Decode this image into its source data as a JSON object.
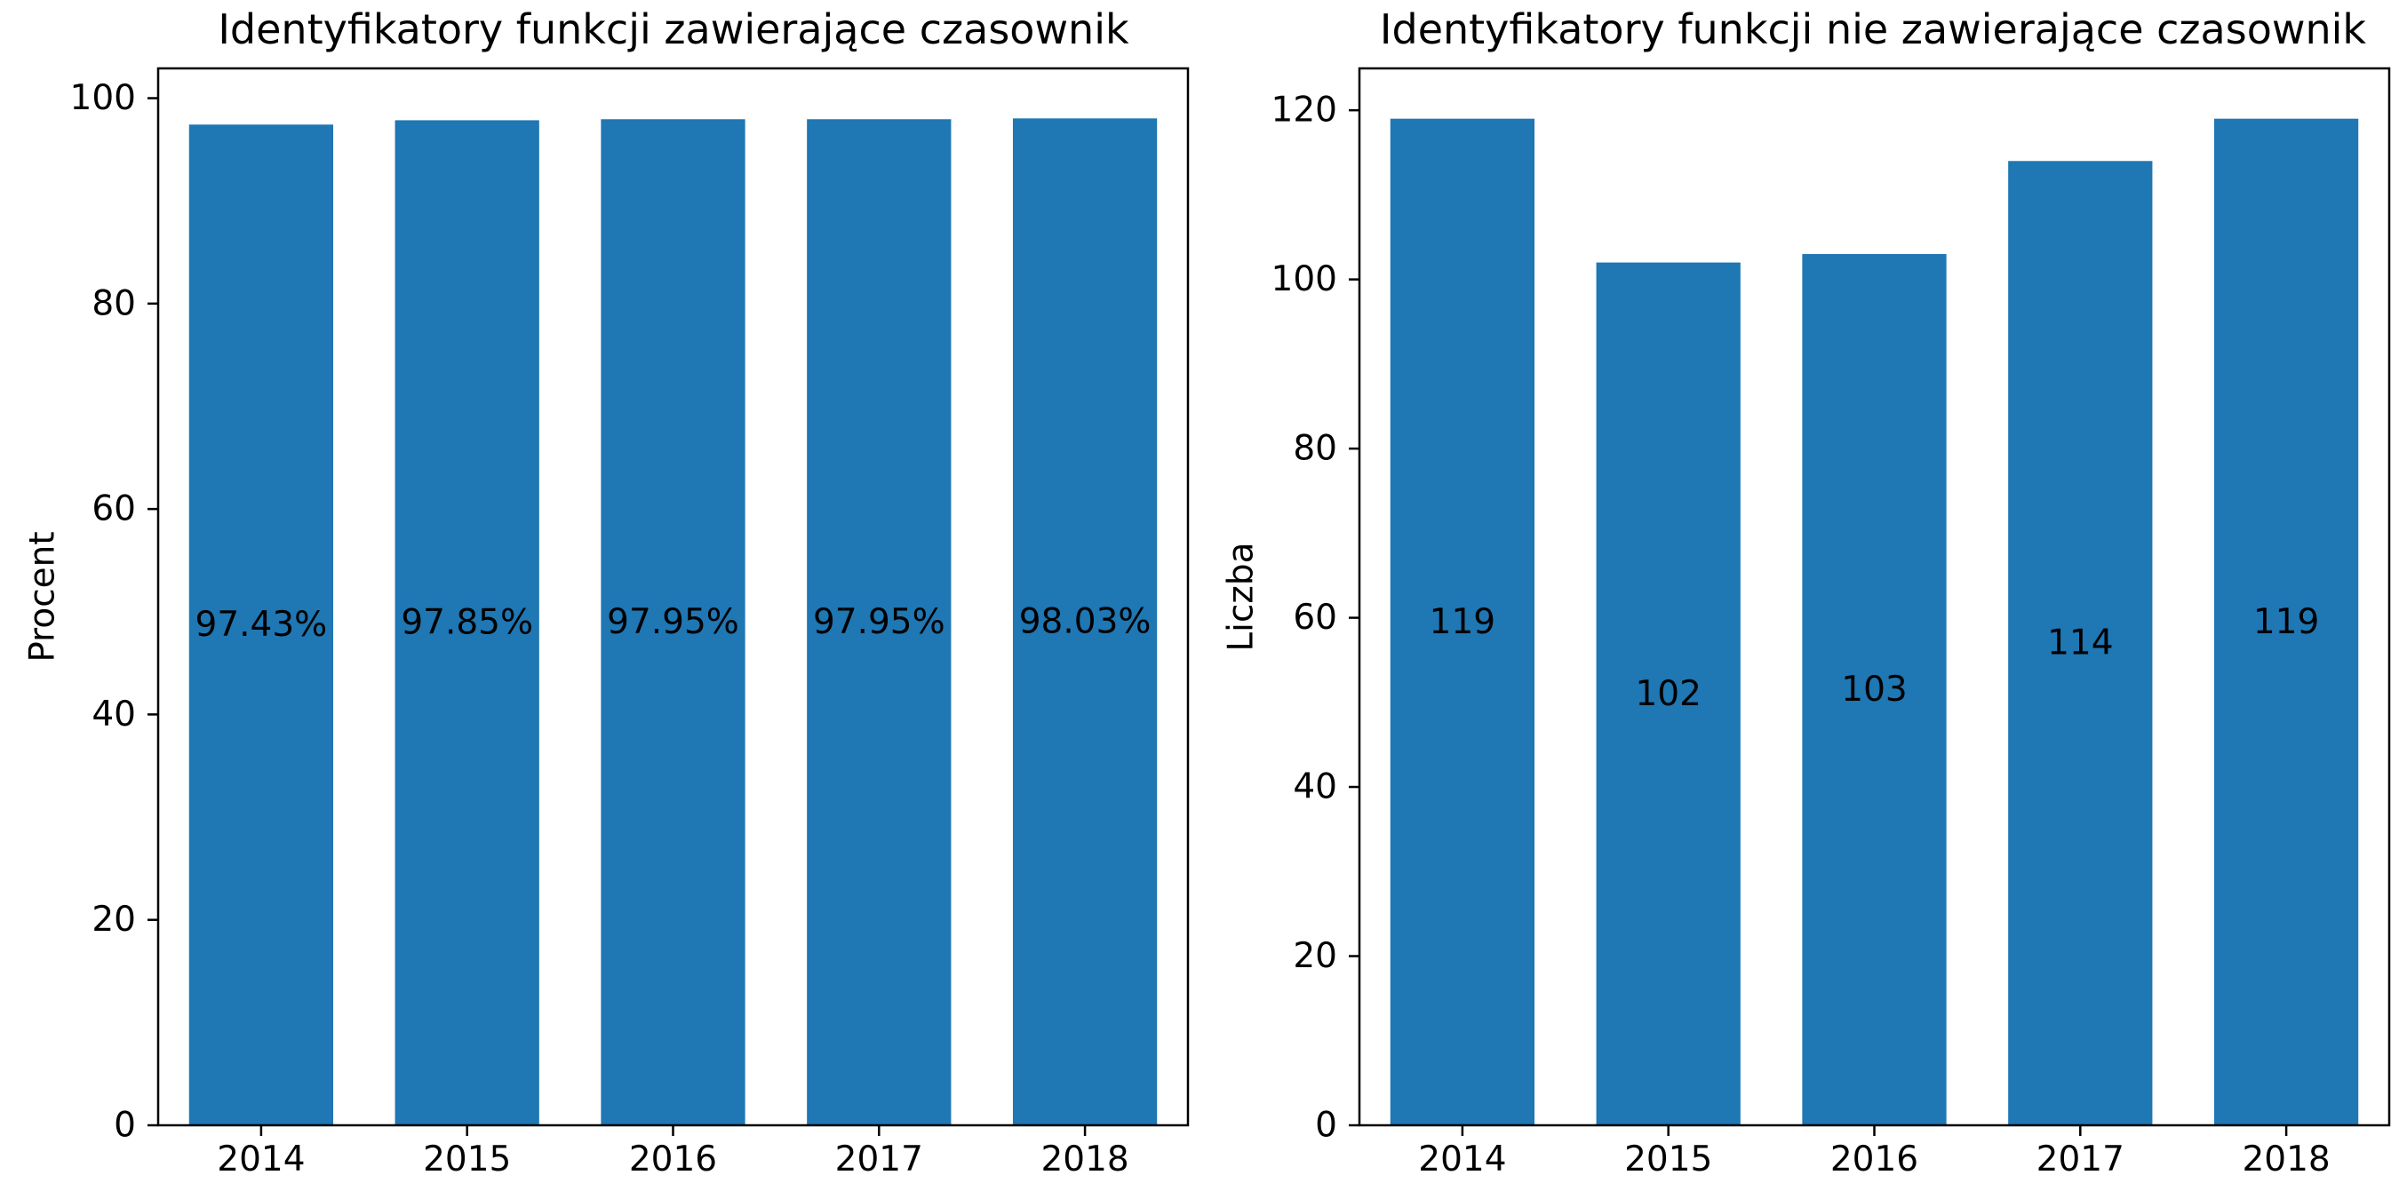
{
  "colors": {
    "bar": "#1f77b4",
    "background": "#ffffff",
    "axis": "#000000"
  },
  "chart_data": [
    {
      "type": "bar",
      "title": "Identyfikatory funkcji zawierające czasownik",
      "xlabel": "",
      "ylabel": "Procent",
      "categories": [
        "2014",
        "2015",
        "2016",
        "2017",
        "2018"
      ],
      "values": [
        97.43,
        97.85,
        97.95,
        97.95,
        98.03
      ],
      "data_labels": [
        "97.43%",
        "97.85%",
        "97.95%",
        "97.95%",
        "98.03%"
      ],
      "ylim": [
        0,
        102.9
      ],
      "yticks": [
        0,
        20,
        40,
        60,
        80,
        100
      ],
      "grid": false,
      "legend": "none"
    },
    {
      "type": "bar",
      "title": "Identyfikatory funkcji nie zawierające czasownik",
      "xlabel": "",
      "ylabel": "Liczba",
      "categories": [
        "2014",
        "2015",
        "2016",
        "2017",
        "2018"
      ],
      "values": [
        119,
        102,
        103,
        114,
        119
      ],
      "data_labels": [
        "119",
        "102",
        "103",
        "114",
        "119"
      ],
      "ylim": [
        0,
        124.95
      ],
      "yticks": [
        0,
        20,
        40,
        60,
        80,
        100,
        120
      ],
      "grid": false,
      "legend": "none"
    }
  ]
}
